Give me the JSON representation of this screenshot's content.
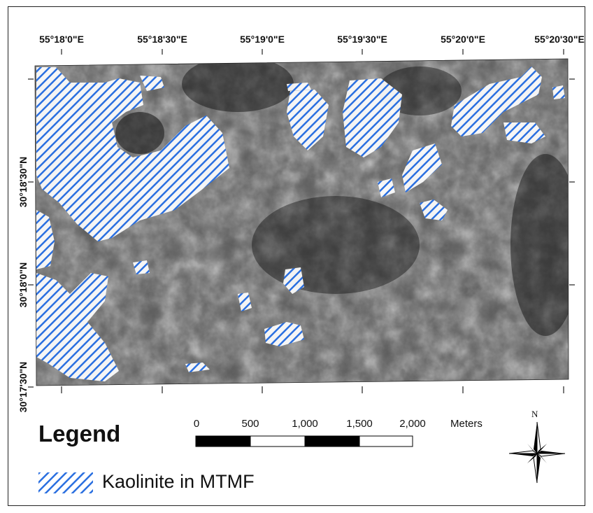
{
  "map": {
    "longitude_labels": [
      "55°18'0\"E",
      "55°18'30\"E",
      "55°19'0\"E",
      "55°19'30\"E",
      "55°20'0\"E",
      "55°20'30\"E"
    ],
    "latitude_labels": [
      "30°18'30\"N",
      "30°18'0\"N",
      "30°17'30\"N"
    ],
    "kaolinite_color": "#2a6fe0",
    "basemap": "grayscale satellite image"
  },
  "legend": {
    "title": "Legend",
    "items": [
      {
        "label": "Kaolinite in MTMF",
        "pattern": "blue diagonal hatch"
      }
    ]
  },
  "scale_bar": {
    "labels": [
      "0",
      "500",
      "1,000",
      "1,500",
      "2,000"
    ],
    "units": "Meters"
  },
  "north_arrow": {
    "label": "N",
    "icon": "compass-rose-icon"
  }
}
